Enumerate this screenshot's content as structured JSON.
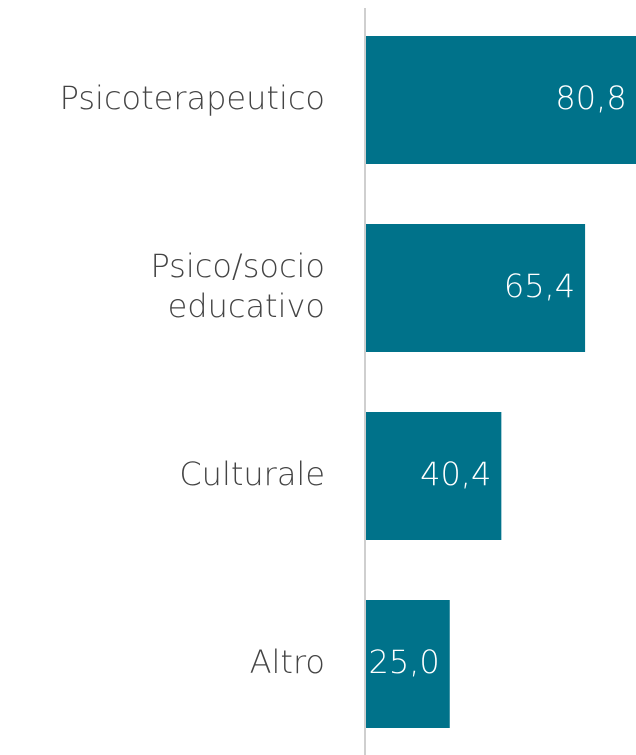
{
  "chart_data": {
    "type": "barh",
    "categories": [
      "Psicoterapeutico",
      "Psico/socio\neducativo",
      "Culturale",
      "Altro"
    ],
    "values": [
      80.8,
      65.4,
      40.4,
      25.0
    ],
    "value_labels": [
      "80,8",
      "65,4",
      "40,4",
      "25,0"
    ],
    "color": "#00728a"
  }
}
